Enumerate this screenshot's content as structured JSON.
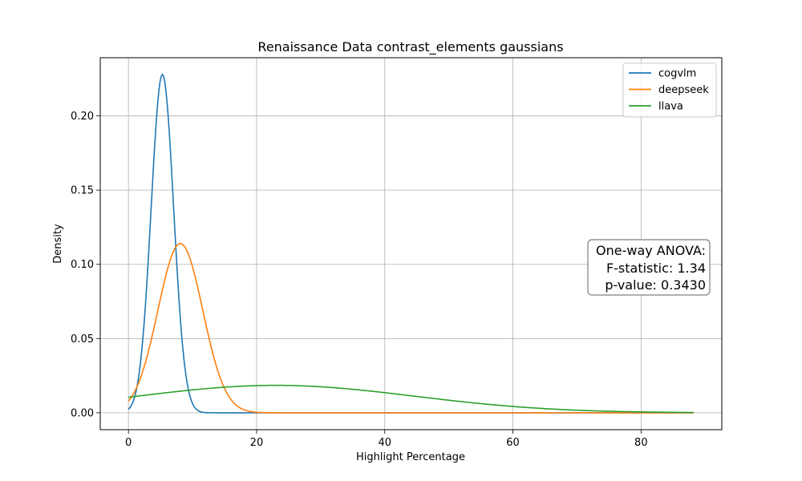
{
  "chart_data": {
    "type": "line",
    "title": "Renaissance Data contrast_elements gaussians",
    "xlabel": "Highlight Percentage",
    "ylabel": "Density",
    "xlim": [
      -4.4,
      92.6
    ],
    "ylim": [
      -0.0114,
      0.2392
    ],
    "x_ticks": [
      0,
      20,
      40,
      60,
      80
    ],
    "y_ticks": [
      0.0,
      0.05,
      0.1,
      0.15,
      0.2
    ],
    "x_tick_labels": [
      "0",
      "20",
      "40",
      "60",
      "80"
    ],
    "y_tick_labels": [
      "0.00",
      "0.05",
      "0.10",
      "0.15",
      "0.20"
    ],
    "grid": true,
    "legend_position": "top-right",
    "x_range": [
      0,
      88.2
    ],
    "series": [
      {
        "name": "cogvlm",
        "color": "#1f77b4",
        "distribution": "gaussian",
        "mean": 5.3,
        "sd": 1.75
      },
      {
        "name": "deepseek",
        "color": "#ff7f0e",
        "distribution": "gaussian",
        "mean": 8.1,
        "sd": 3.5
      },
      {
        "name": "llava",
        "color": "#2ca02c",
        "distribution": "gaussian",
        "mean": 23.0,
        "sd": 21.6
      }
    ],
    "annotation": {
      "lines": [
        "One-way ANOVA:",
        "F-statistic: 1.34",
        "p-value: 0.3430"
      ]
    }
  }
}
